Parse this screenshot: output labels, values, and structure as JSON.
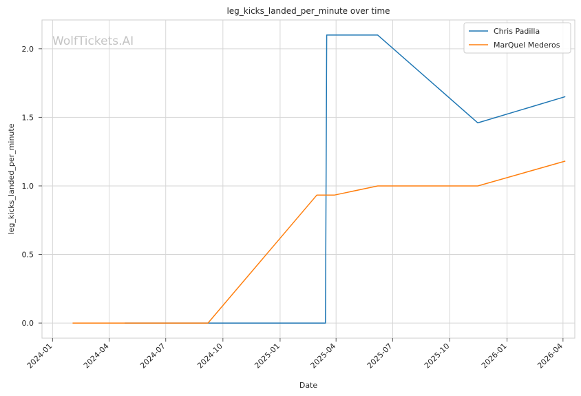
{
  "chart_data": {
    "type": "line",
    "title": "leg_kicks_landed_per_minute over time",
    "xlabel": "Date",
    "ylabel": "leg_kicks_landed_per_minute",
    "watermark": "WolfTickets.AI",
    "x_axis_type": "date",
    "xlim": [
      "2023-12-15",
      "2026-04-20"
    ],
    "ylim": [
      -0.11,
      2.21
    ],
    "x_ticks": [
      "2024-01",
      "2024-04",
      "2024-07",
      "2024-10",
      "2025-01",
      "2025-04",
      "2025-07",
      "2025-10",
      "2026-01",
      "2026-04"
    ],
    "y_ticks": [
      "0.0",
      "0.5",
      "1.0",
      "1.5",
      "2.0"
    ],
    "grid": true,
    "legend_position": "top-right",
    "series": [
      {
        "name": "Chris Padilla",
        "color": "#1f77b4",
        "points": [
          {
            "x": "2024-04-27",
            "y": 0.0
          },
          {
            "x": "2025-03-15",
            "y": 0.0
          },
          {
            "x": "2025-03-17",
            "y": 2.1
          },
          {
            "x": "2025-06-07",
            "y": 2.1
          },
          {
            "x": "2025-11-15",
            "y": 1.46
          },
          {
            "x": "2026-04-04",
            "y": 1.65
          }
        ]
      },
      {
        "name": "MarQuel Mederos",
        "color": "#ff7f0e",
        "points": [
          {
            "x": "2024-02-03",
            "y": 0.0
          },
          {
            "x": "2024-09-07",
            "y": 0.0
          },
          {
            "x": "2025-03-01",
            "y": 0.933
          },
          {
            "x": "2025-03-29",
            "y": 0.933
          },
          {
            "x": "2025-06-07",
            "y": 1.0
          },
          {
            "x": "2025-11-15",
            "y": 1.0
          },
          {
            "x": "2026-04-04",
            "y": 1.18
          }
        ]
      }
    ]
  }
}
